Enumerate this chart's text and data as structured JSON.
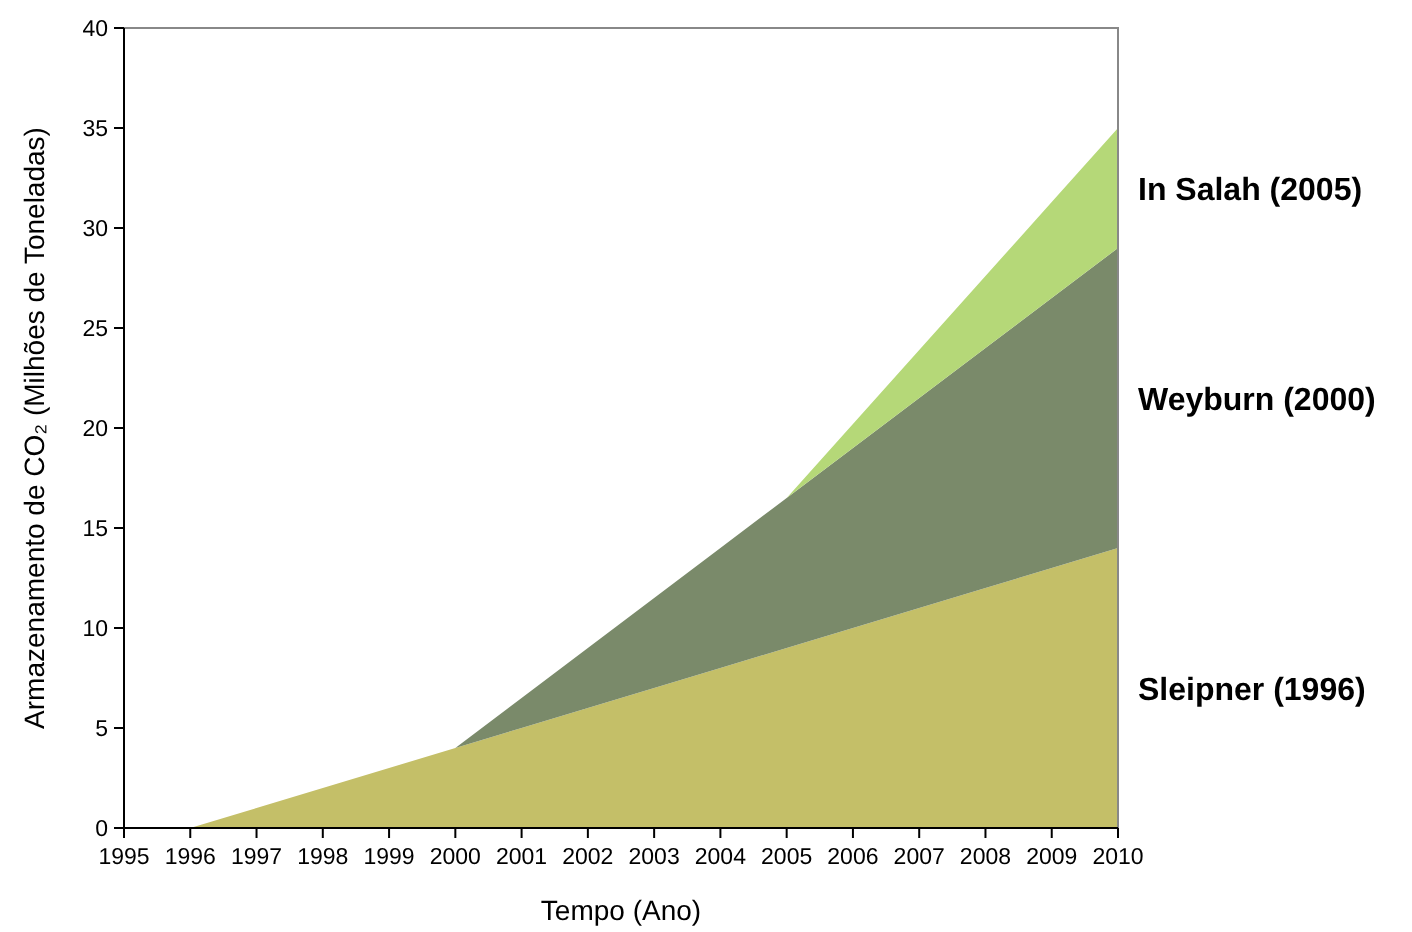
{
  "chart_data": {
    "type": "area",
    "stacked": true,
    "xlabel": "Tempo (Ano)",
    "ylabel": "Armazenamento de CO₂ (Milhões de Toneladas)",
    "x": [
      1996,
      1997,
      1998,
      1999,
      2000,
      2001,
      2002,
      2003,
      2004,
      2005,
      2006,
      2007,
      2008,
      2009,
      2010
    ],
    "series": [
      {
        "name": "Sleipner (1996)",
        "color": "#c4bf68",
        "values": [
          0,
          1,
          2,
          3,
          4,
          5,
          6,
          7,
          8,
          9,
          10,
          11,
          12,
          13,
          14
        ]
      },
      {
        "name": "Weyburn (2000)",
        "color": "#7a8a6a",
        "values": [
          null,
          null,
          null,
          null,
          0,
          1.5,
          3,
          4.5,
          6,
          7.5,
          9,
          10.5,
          12,
          13.5,
          15
        ]
      },
      {
        "name": "In Salah (2005)",
        "color": "#b5d878",
        "values": [
          null,
          null,
          null,
          null,
          null,
          null,
          null,
          null,
          null,
          0,
          1.2,
          2.4,
          3.6,
          4.8,
          6
        ]
      }
    ],
    "xlim": [
      1995,
      2010
    ],
    "xticks": [
      1995,
      1996,
      1997,
      1998,
      1999,
      2000,
      2001,
      2002,
      2003,
      2004,
      2005,
      2006,
      2007,
      2008,
      2009,
      2010
    ],
    "ylim": [
      0,
      40
    ],
    "yticks": [
      0,
      5,
      10,
      15,
      20,
      25,
      30,
      35,
      40
    ],
    "grid": false
  }
}
